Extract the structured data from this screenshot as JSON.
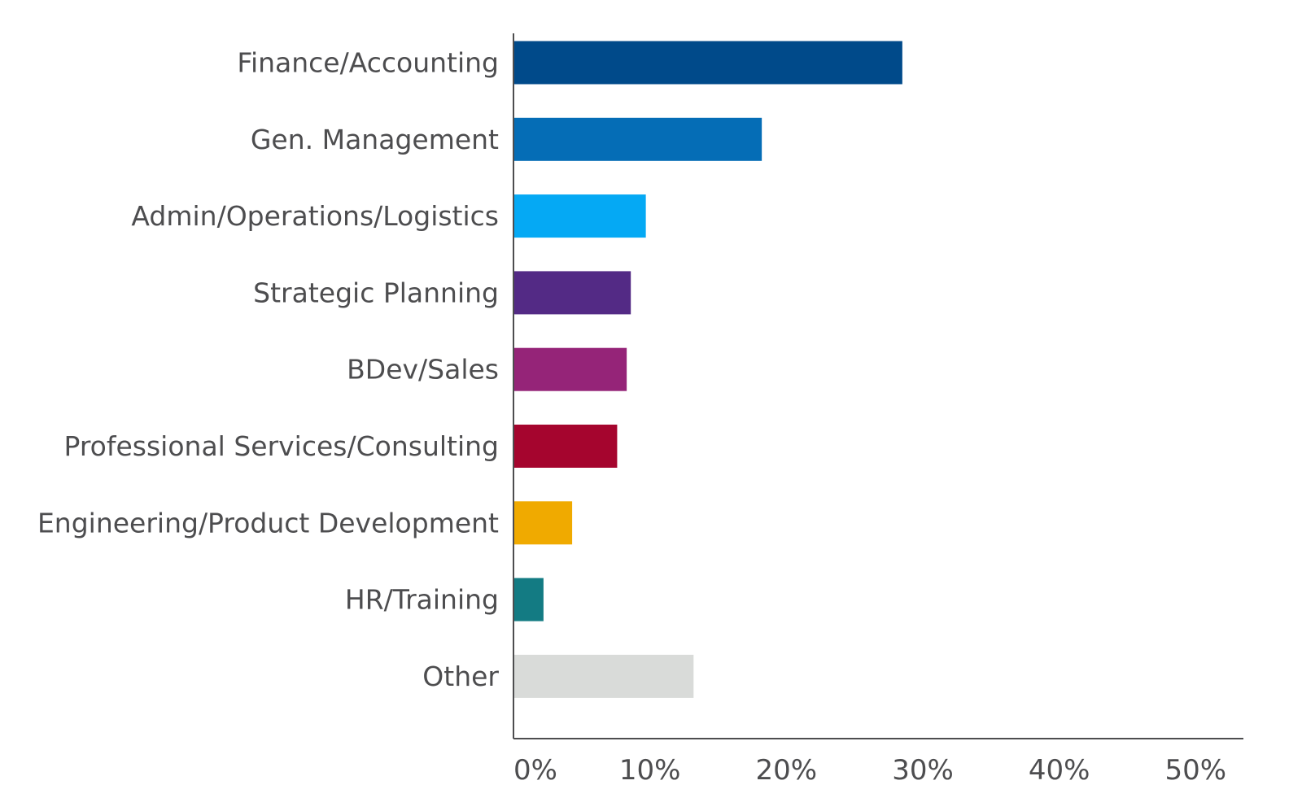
{
  "chart_data": {
    "type": "bar",
    "orientation": "horizontal",
    "title": "",
    "xlabel": "",
    "ylabel": "",
    "categories": [
      "Finance/Accounting",
      "Gen. Management",
      "Admin/Operations/Logistics",
      "Strategic Planning",
      "BDev/Sales",
      "Professional Services/Consulting",
      "Engineering/Product Development",
      "HR/Training",
      "Other"
    ],
    "values": [
      28.5,
      18.2,
      9.7,
      8.6,
      8.3,
      7.6,
      4.3,
      2.2,
      13.2
    ],
    "colors": [
      "#004a8a",
      "#056db6",
      "#05a9f4",
      "#532a85",
      "#952478",
      "#a5052e",
      "#f0aa00",
      "#137b83",
      "#d9dbd9"
    ],
    "xlim": [
      0,
      53.5
    ],
    "xticks": [
      0,
      10,
      20,
      30,
      40,
      50
    ],
    "xtick_labels": [
      "0%",
      "10%",
      "20%",
      "30%",
      "40%",
      "50%"
    ],
    "grid": false,
    "legend": "none"
  }
}
